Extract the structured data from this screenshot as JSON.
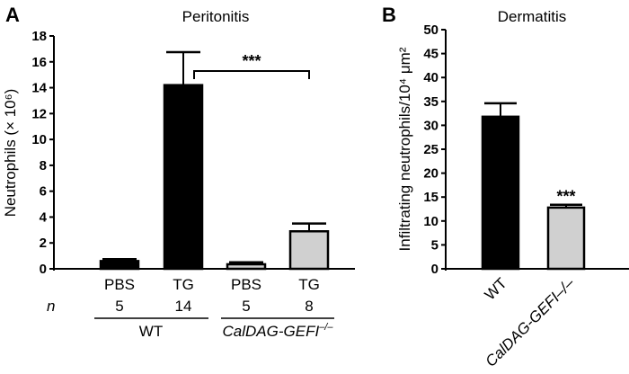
{
  "chart_data": [
    {
      "panel": "A",
      "type": "bar",
      "title": "Peritonitis",
      "ylabel": "Neutrophils (× 10⁶)",
      "ylim": [
        0,
        18
      ],
      "yticks": [
        "0",
        "2",
        "4",
        "6",
        "8",
        "10",
        "12",
        "14",
        "16",
        "18"
      ],
      "categories": [
        "PBS",
        "TG",
        "PBS",
        "TG"
      ],
      "n_label": "n",
      "n_values": [
        "5",
        "14",
        "5",
        "8"
      ],
      "groups": [
        {
          "label": "WT"
        },
        {
          "label": "CalDAG-GEFI",
          "superscript": "–/–"
        }
      ],
      "values": [
        0.6,
        14.2,
        0.35,
        2.9
      ],
      "error_upper": [
        0.75,
        16.75,
        0.5,
        3.5
      ],
      "colors": [
        "#000000",
        "#000000",
        "#d0d0d0",
        "#d0d0d0"
      ],
      "significance": {
        "between": [
          1,
          3
        ],
        "label": "***"
      }
    },
    {
      "panel": "B",
      "type": "bar",
      "title": "Dermatitis",
      "ylabel": "Infiltrating neutrophils/10⁴ μm²",
      "ylim": [
        0,
        50
      ],
      "yticks": [
        "0",
        "5",
        "10",
        "15",
        "20",
        "25",
        "30",
        "35",
        "40",
        "45",
        "50"
      ],
      "categories": [
        "WT",
        "CalDAG-GEFI–/–"
      ],
      "values": [
        31.8,
        12.8
      ],
      "error_upper": [
        34.6,
        13.4
      ],
      "colors": [
        "#000000",
        "#d0d0d0"
      ],
      "significance_labels": [
        "",
        "***"
      ]
    }
  ]
}
